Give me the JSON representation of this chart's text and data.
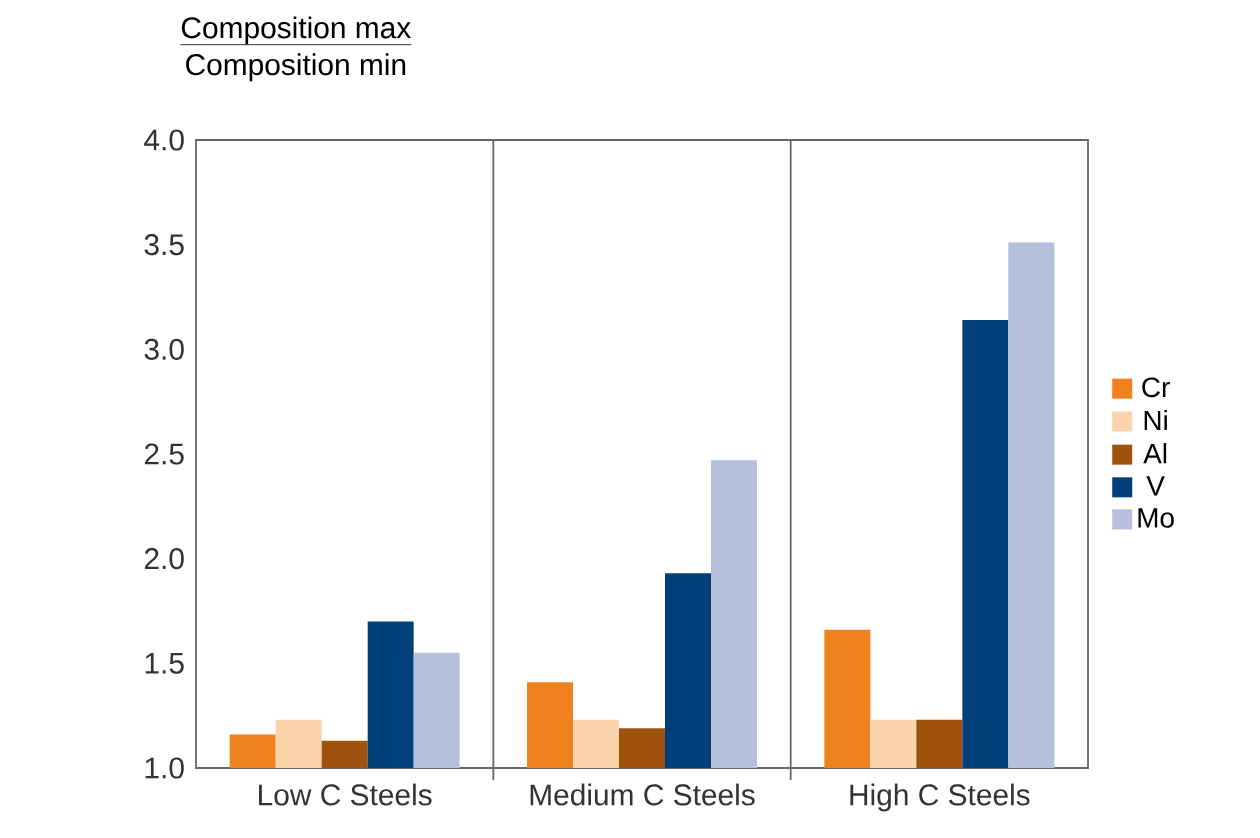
{
  "chart_data": {
    "type": "bar",
    "title": "Composition max",
    "subtitle": "Composition min",
    "categories": [
      "Low C Steels",
      "Medium C Steels",
      "High C Steels"
    ],
    "series": [
      {
        "name": "Cr",
        "color": "#f0821e",
        "values": [
          1.16,
          1.41,
          1.66
        ]
      },
      {
        "name": "Ni",
        "color": "#fcd4ac",
        "values": [
          1.23,
          1.23,
          1.23
        ]
      },
      {
        "name": "Al",
        "color": "#a0520f",
        "values": [
          1.13,
          1.19,
          1.23
        ]
      },
      {
        "name": "V",
        "color": "#003f7a",
        "values": [
          1.7,
          1.93,
          3.14
        ]
      },
      {
        "name": "Mo",
        "color": "#b5c0dc",
        "values": [
          1.55,
          2.47,
          3.51
        ]
      }
    ],
    "ylim": [
      1.0,
      4.0
    ],
    "yticks": [
      {
        "value": 1.0,
        "label": "1.0"
      },
      {
        "value": 1.5,
        "label": "1.5"
      },
      {
        "value": 2.0,
        "label": "2.0"
      },
      {
        "value": 2.5,
        "label": "2.5"
      },
      {
        "value": 3.0,
        "label": "3.0"
      },
      {
        "value": 3.5,
        "label": "3.5"
      },
      {
        "value": 4.0,
        "label": "4.0"
      }
    ],
    "grid": false,
    "legend": "right"
  }
}
